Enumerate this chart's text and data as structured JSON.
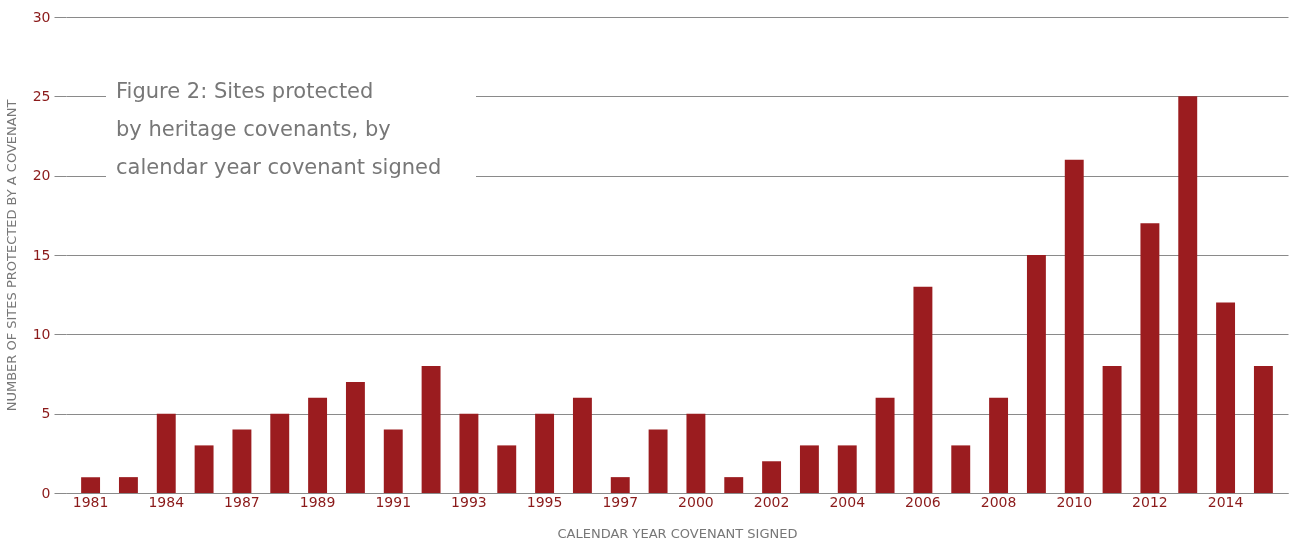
{
  "chart_data": {
    "type": "bar",
    "title": "Figure 2: Sites protected by heritage covenants, by calendar year covenant signed",
    "xlabel": "CALENDAR YEAR COVENANT SIGNED",
    "ylabel": "NUMBER OF SITES PROTECTED BY A COVENANT",
    "categories": [
      "1981",
      null,
      "1984",
      null,
      "1987",
      null,
      "1989",
      null,
      "1991",
      null,
      "1993",
      null,
      "1995",
      null,
      "1997",
      null,
      "2000",
      null,
      "2002",
      null,
      "2004",
      null,
      "2006",
      null,
      "2008",
      null,
      "2010",
      null,
      "2012",
      null,
      "2014",
      null
    ],
    "values": [
      1,
      1,
      5,
      3,
      4,
      5,
      6,
      7,
      4,
      8,
      5,
      3,
      5,
      6,
      1,
      4,
      5,
      1,
      2,
      3,
      3,
      6,
      13,
      3,
      6,
      15,
      21,
      8,
      17,
      25,
      12,
      8
    ],
    "color": "#9b1c1f",
    "ylim": [
      0,
      30
    ],
    "yticks": [
      0,
      5,
      10,
      15,
      20,
      25,
      30
    ],
    "grid": "y"
  }
}
